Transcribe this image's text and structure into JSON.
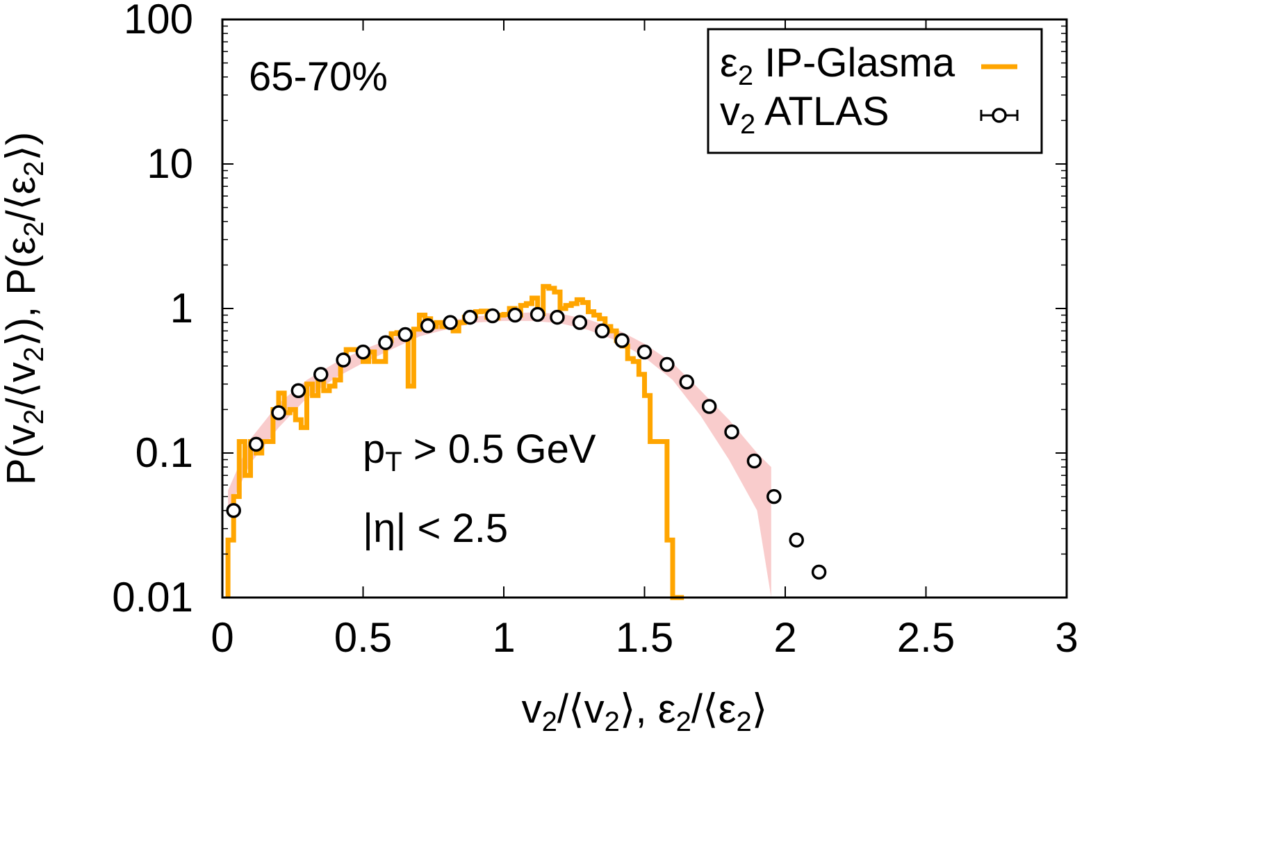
{
  "chart_data": {
    "type": "line",
    "xlabel_parts": [
      "v",
      "2",
      "/⟨v",
      "2",
      "⟩, ε",
      "2",
      "/⟨ε",
      "2",
      "⟩"
    ],
    "ylabel_parts": [
      "P(v",
      "2",
      "/⟨v",
      "2",
      "⟩), P(ε",
      "2",
      "/⟨ε",
      "2",
      "⟩)"
    ],
    "xlim": [
      0,
      3
    ],
    "ylim": [
      0.01,
      100
    ],
    "yscale": "log",
    "x_ticks": [
      {
        "value": 0,
        "label": "0"
      },
      {
        "value": 0.5,
        "label": "0.5"
      },
      {
        "value": 1,
        "label": "1"
      },
      {
        "value": 1.5,
        "label": "1.5"
      },
      {
        "value": 2,
        "label": "2"
      },
      {
        "value": 2.5,
        "label": "2.5"
      },
      {
        "value": 3,
        "label": "3"
      }
    ],
    "y_ticks": [
      {
        "value": 0.01,
        "label": "0.01"
      },
      {
        "value": 0.1,
        "label": "0.1"
      },
      {
        "value": 1,
        "label": "1"
      },
      {
        "value": 10,
        "label": "10"
      },
      {
        "value": 100,
        "label": "100"
      }
    ],
    "grid": false,
    "legend_position": "top-right",
    "annotations": {
      "centrality": "65-70%",
      "pt_cut": {
        "main": "p",
        "sub": "T",
        "rest": " > 0.5 GeV"
      },
      "eta_cut": "|η| < 2.5"
    },
    "series": [
      {
        "name_parts": [
          "ε",
          "2",
          " IP-Glasma"
        ],
        "style": "histogram-step",
        "color": "#FFA500",
        "bin_edges": [
          0.02,
          0.04,
          0.06,
          0.08,
          0.1,
          0.12,
          0.14,
          0.16,
          0.18,
          0.2,
          0.22,
          0.24,
          0.26,
          0.28,
          0.3,
          0.32,
          0.34,
          0.36,
          0.38,
          0.4,
          0.42,
          0.44,
          0.46,
          0.48,
          0.5,
          0.52,
          0.54,
          0.56,
          0.58,
          0.6,
          0.62,
          0.64,
          0.66,
          0.68,
          0.7,
          0.72,
          0.74,
          0.76,
          0.78,
          0.8,
          0.82,
          0.84,
          0.86,
          0.88,
          0.9,
          0.92,
          0.94,
          0.96,
          0.98,
          1.0,
          1.02,
          1.04,
          1.06,
          1.08,
          1.1,
          1.12,
          1.14,
          1.16,
          1.18,
          1.2,
          1.22,
          1.24,
          1.26,
          1.28,
          1.3,
          1.32,
          1.34,
          1.36,
          1.38,
          1.4,
          1.42,
          1.44,
          1.46,
          1.48,
          1.5,
          1.52,
          1.54,
          1.56,
          1.58,
          1.6,
          1.62,
          1.64
        ],
        "values": [
          0.025,
          0.05,
          0.12,
          0.07,
          0.12,
          0.1,
          0.12,
          0.12,
          0.2,
          0.26,
          0.19,
          0.2,
          0.17,
          0.15,
          0.3,
          0.25,
          0.33,
          0.27,
          0.29,
          0.32,
          0.42,
          0.52,
          0.52,
          0.52,
          0.43,
          0.5,
          0.43,
          0.43,
          0.6,
          0.67,
          0.68,
          0.69,
          0.29,
          0.72,
          0.9,
          0.85,
          0.75,
          0.8,
          0.75,
          0.8,
          0.7,
          0.8,
          0.87,
          0.89,
          0.95,
          0.96,
          0.87,
          0.86,
          0.9,
          0.91,
          1.0,
          0.9,
          1.05,
          1.08,
          1.18,
          0.92,
          1.42,
          1.38,
          1.3,
          1.0,
          1.05,
          1.08,
          1.15,
          1.1,
          0.95,
          0.9,
          0.85,
          0.75,
          0.7,
          0.6,
          0.55,
          0.45,
          0.43,
          0.35,
          0.25,
          0.12,
          0.12,
          0.12,
          0.025,
          0.01,
          0.01
        ]
      },
      {
        "name_parts": [
          "v",
          "2",
          " ATLAS"
        ],
        "style": "points-errorbars",
        "color": "#000000",
        "x": [
          0.04,
          0.12,
          0.2,
          0.27,
          0.35,
          0.43,
          0.5,
          0.58,
          0.65,
          0.73,
          0.81,
          0.88,
          0.96,
          1.04,
          1.12,
          1.19,
          1.27,
          1.35,
          1.42,
          1.5,
          1.58,
          1.65,
          1.73,
          1.81,
          1.89,
          1.96,
          2.04,
          2.12
        ],
        "y": [
          0.04,
          0.115,
          0.19,
          0.27,
          0.35,
          0.44,
          0.5,
          0.58,
          0.66,
          0.76,
          0.8,
          0.87,
          0.89,
          0.9,
          0.91,
          0.87,
          0.8,
          0.7,
          0.6,
          0.5,
          0.41,
          0.31,
          0.21,
          0.14,
          0.088,
          0.05,
          0.025,
          0.015
        ]
      }
    ],
    "band": {
      "color": "#F9CCCC",
      "x": [
        0.02,
        0.1,
        0.2,
        0.3,
        0.4,
        0.5,
        0.6,
        0.7,
        0.8,
        0.9,
        1.0,
        1.1,
        1.2,
        1.3,
        1.4,
        1.5,
        1.6,
        1.7,
        1.8,
        1.9,
        1.95
      ],
      "lower": [
        0.04,
        0.085,
        0.15,
        0.24,
        0.33,
        0.42,
        0.52,
        0.64,
        0.72,
        0.8,
        0.82,
        0.82,
        0.79,
        0.71,
        0.6,
        0.46,
        0.32,
        0.18,
        0.09,
        0.04,
        0.01
      ],
      "upper": [
        0.055,
        0.125,
        0.22,
        0.32,
        0.42,
        0.52,
        0.62,
        0.73,
        0.82,
        0.88,
        0.92,
        0.94,
        0.92,
        0.84,
        0.72,
        0.57,
        0.42,
        0.27,
        0.17,
        0.1,
        0.08
      ]
    }
  }
}
